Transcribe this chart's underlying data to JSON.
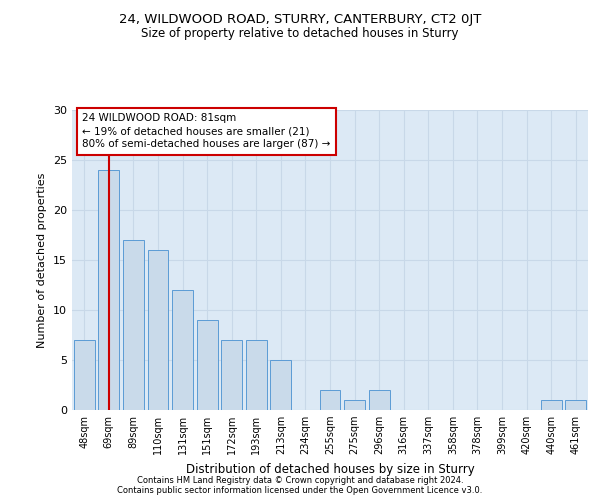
{
  "title": "24, WILDWOOD ROAD, STURRY, CANTERBURY, CT2 0JT",
  "subtitle": "Size of property relative to detached houses in Sturry",
  "xlabel": "Distribution of detached houses by size in Sturry",
  "ylabel": "Number of detached properties",
  "bar_labels": [
    "48sqm",
    "69sqm",
    "89sqm",
    "110sqm",
    "131sqm",
    "151sqm",
    "172sqm",
    "193sqm",
    "213sqm",
    "234sqm",
    "255sqm",
    "275sqm",
    "296sqm",
    "316sqm",
    "337sqm",
    "358sqm",
    "378sqm",
    "399sqm",
    "420sqm",
    "440sqm",
    "461sqm"
  ],
  "bar_values": [
    7,
    24,
    17,
    16,
    12,
    9,
    7,
    7,
    5,
    0,
    2,
    1,
    2,
    0,
    0,
    0,
    0,
    0,
    0,
    1,
    1
  ],
  "bar_color": "#c9daea",
  "bar_edge_color": "#5b9bd5",
  "grid_color": "#c8d8e8",
  "bg_color": "#dce9f5",
  "red_line_x": 1.0,
  "annotation_text": "24 WILDWOOD ROAD: 81sqm\n← 19% of detached houses are smaller (21)\n80% of semi-detached houses are larger (87) →",
  "annotation_box_color": "#ffffff",
  "annotation_box_edge": "#cc0000",
  "footer1": "Contains HM Land Registry data © Crown copyright and database right 2024.",
  "footer2": "Contains public sector information licensed under the Open Government Licence v3.0.",
  "ylim": [
    0,
    30
  ],
  "yticks": [
    0,
    5,
    10,
    15,
    20,
    25,
    30
  ]
}
